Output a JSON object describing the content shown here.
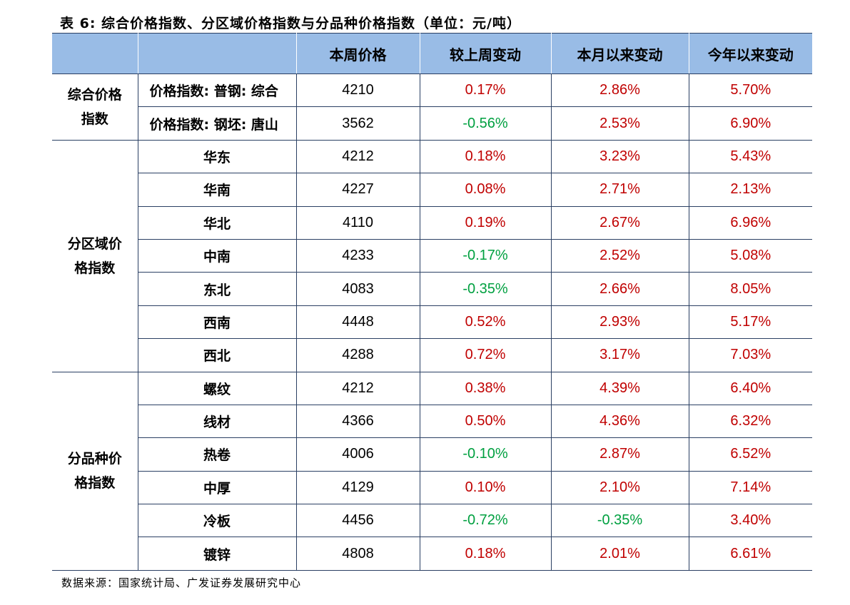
{
  "title": "表 6:  综合价格指数、分区域价格指数与分品种价格指数（单位：元/吨）",
  "source": "数据来源：国家统计局、广发证券发展研究中心",
  "colors": {
    "header_bg": "#99bce6",
    "positive": "#c00000",
    "negative": "#00a040",
    "border": "#2a3f63"
  },
  "headers": [
    "",
    "",
    "本周价格",
    "较上周变动",
    "本月以来变动",
    "今年以来变动"
  ],
  "groups": [
    {
      "label_lines": [
        "综合价格",
        "指数"
      ],
      "align": "left",
      "rows": [
        {
          "name": "价格指数: 普钢: 综合",
          "price": "4210",
          "wow": "0.17%",
          "wow_sign": "pos",
          "mtd": "2.86%",
          "mtd_sign": "pos",
          "ytd": "5.70%",
          "ytd_sign": "pos"
        },
        {
          "name": "价格指数: 钢坯: 唐山",
          "price": "3562",
          "wow": "-0.56%",
          "wow_sign": "neg",
          "mtd": "2.53%",
          "mtd_sign": "pos",
          "ytd": "6.90%",
          "ytd_sign": "pos"
        }
      ]
    },
    {
      "label_lines": [
        "分区域价",
        "格指数"
      ],
      "align": "center",
      "rows": [
        {
          "name": "华东",
          "price": "4212",
          "wow": "0.18%",
          "wow_sign": "pos",
          "mtd": "3.23%",
          "mtd_sign": "pos",
          "ytd": "5.43%",
          "ytd_sign": "pos"
        },
        {
          "name": "华南",
          "price": "4227",
          "wow": "0.08%",
          "wow_sign": "pos",
          "mtd": "2.71%",
          "mtd_sign": "pos",
          "ytd": "2.13%",
          "ytd_sign": "pos"
        },
        {
          "name": "华北",
          "price": "4110",
          "wow": "0.19%",
          "wow_sign": "pos",
          "mtd": "2.67%",
          "mtd_sign": "pos",
          "ytd": "6.96%",
          "ytd_sign": "pos"
        },
        {
          "name": "中南",
          "price": "4233",
          "wow": "-0.17%",
          "wow_sign": "neg",
          "mtd": "2.52%",
          "mtd_sign": "pos",
          "ytd": "5.08%",
          "ytd_sign": "pos"
        },
        {
          "name": "东北",
          "price": "4083",
          "wow": "-0.35%",
          "wow_sign": "neg",
          "mtd": "2.66%",
          "mtd_sign": "pos",
          "ytd": "8.05%",
          "ytd_sign": "pos"
        },
        {
          "name": "西南",
          "price": "4448",
          "wow": "0.52%",
          "wow_sign": "pos",
          "mtd": "2.93%",
          "mtd_sign": "pos",
          "ytd": "5.17%",
          "ytd_sign": "pos"
        },
        {
          "name": "西北",
          "price": "4288",
          "wow": "0.72%",
          "wow_sign": "pos",
          "mtd": "3.17%",
          "mtd_sign": "pos",
          "ytd": "7.03%",
          "ytd_sign": "pos"
        }
      ]
    },
    {
      "label_lines": [
        "分品种价",
        "格指数"
      ],
      "align": "center",
      "rows": [
        {
          "name": "螺纹",
          "price": "4212",
          "wow": "0.38%",
          "wow_sign": "pos",
          "mtd": "4.39%",
          "mtd_sign": "pos",
          "ytd": "6.40%",
          "ytd_sign": "pos"
        },
        {
          "name": "线材",
          "price": "4366",
          "wow": "0.50%",
          "wow_sign": "pos",
          "mtd": "4.36%",
          "mtd_sign": "pos",
          "ytd": "6.32%",
          "ytd_sign": "pos"
        },
        {
          "name": "热卷",
          "price": "4006",
          "wow": "-0.10%",
          "wow_sign": "neg",
          "mtd": "2.87%",
          "mtd_sign": "pos",
          "ytd": "6.52%",
          "ytd_sign": "pos"
        },
        {
          "name": "中厚",
          "price": "4129",
          "wow": "0.10%",
          "wow_sign": "pos",
          "mtd": "2.10%",
          "mtd_sign": "pos",
          "ytd": "7.14%",
          "ytd_sign": "pos"
        },
        {
          "name": "冷板",
          "price": "4456",
          "wow": "-0.72%",
          "wow_sign": "neg",
          "mtd": "-0.35%",
          "mtd_sign": "neg",
          "ytd": "3.40%",
          "ytd_sign": "pos"
        },
        {
          "name": "镀锌",
          "price": "4808",
          "wow": "0.18%",
          "wow_sign": "pos",
          "mtd": "2.01%",
          "mtd_sign": "pos",
          "ytd": "6.61%",
          "ytd_sign": "pos"
        }
      ]
    }
  ]
}
